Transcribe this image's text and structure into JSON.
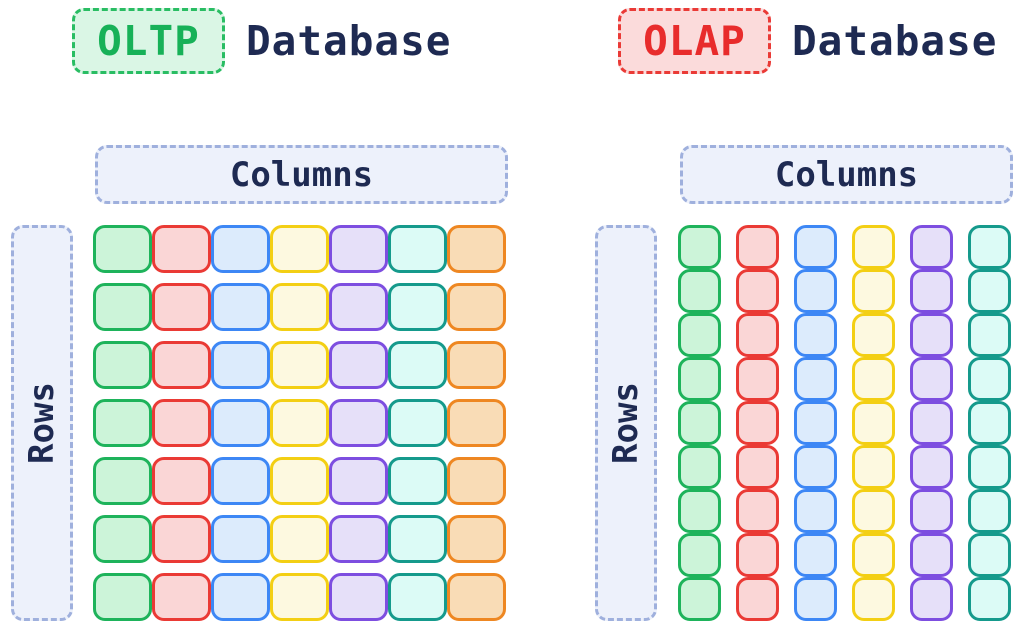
{
  "background_color": "#ffffff",
  "text_color": "#1e2a52",
  "pill_style": {
    "fill": "#edf1fb",
    "border": "#9fb0dd"
  },
  "palette": {
    "green": {
      "border": "#1eb35b",
      "fill": "#ccf4d9"
    },
    "red": {
      "border": "#ea3a35",
      "fill": "#fad6d6"
    },
    "blue": {
      "border": "#3d87f5",
      "fill": "#dcebfc"
    },
    "yellow": {
      "border": "#f3cf14",
      "fill": "#fdf9e0"
    },
    "purple": {
      "border": "#7d4ee0",
      "fill": "#e6e0f9"
    },
    "teal": {
      "border": "#159a8c",
      "fill": "#dcfbf6"
    },
    "orange": {
      "border": "#ee8722",
      "fill": "#f9dcb6"
    }
  },
  "oltp": {
    "title_tag": "OLTP",
    "title_suffix": "Database",
    "tag_colors": {
      "text": "#17b158",
      "border": "#29bd63",
      "fill": "#daf6e5"
    },
    "columns_label": "Columns",
    "rows_label": "Rows",
    "grid": {
      "orientation": "row-oriented",
      "rows": 7,
      "cols": 7,
      "column_color_order": [
        "green",
        "red",
        "blue",
        "yellow",
        "purple",
        "teal",
        "orange"
      ]
    }
  },
  "olap": {
    "title_tag": "OLAP",
    "title_suffix": "Database",
    "tag_colors": {
      "text": "#e82c2c",
      "border": "#ea3a36",
      "fill": "#fbdbdb"
    },
    "columns_label": "Columns",
    "rows_label": "Rows",
    "grid": {
      "orientation": "column-oriented",
      "rows": 9,
      "cols": 6,
      "column_color_order": [
        "green",
        "red",
        "blue",
        "yellow",
        "purple",
        "teal"
      ]
    }
  }
}
